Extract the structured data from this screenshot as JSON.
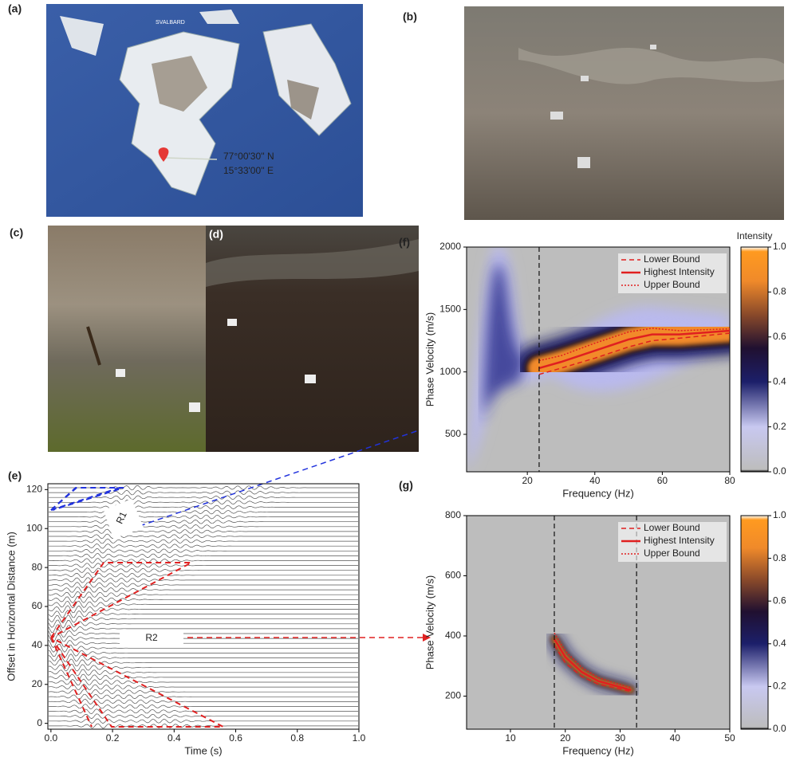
{
  "panel_labels": [
    "(a)",
    "(b)",
    "(c)",
    "(d)",
    "(e)",
    "(f)",
    "(g)"
  ],
  "map": {
    "region": "SVALBARD",
    "latitude": "77°00'30'' N",
    "longitude": "15°33'00'' E"
  },
  "seismogram": {
    "xlabel": "Time (s)",
    "ylabel": "Offset in Horizontal Distance (m)",
    "xlim": [
      -0.01,
      1.0
    ],
    "xticks": [
      {
        "value": 0,
        "label": "0.0"
      },
      {
        "value": 0.2,
        "label": "0.2"
      },
      {
        "value": 0.4,
        "label": "0.4"
      },
      {
        "value": 0.6,
        "label": "0.6"
      },
      {
        "value": 0.8,
        "label": "0.8"
      },
      {
        "value": 1.0,
        "label": "1.0"
      }
    ],
    "ylim": [
      -3,
      123
    ],
    "yticks": [
      0,
      20,
      40,
      60,
      80,
      100,
      120
    ],
    "annotations": [
      "R1",
      "R2"
    ]
  },
  "dispersion_f": {
    "xlabel": "Frequency (Hz)",
    "ylabel": "Phase Velocity (m/s)",
    "xlim": [
      2,
      80
    ],
    "xticks": [
      20,
      40,
      60,
      80
    ],
    "ylim": [
      200,
      2000
    ],
    "yticks": [
      500,
      1000,
      1500,
      2000
    ],
    "cutoffs": [
      23.5
    ],
    "legend": [
      "Lower Bound",
      "Highest Intensity",
      "Upper Bound"
    ],
    "curves": {
      "x": [
        23.5,
        30,
        40,
        50,
        57,
        65,
        80
      ],
      "lower": [
        980,
        1030,
        1110,
        1200,
        1250,
        1270,
        1310
      ],
      "highest": [
        1030,
        1080,
        1170,
        1260,
        1300,
        1300,
        1330
      ],
      "upper": [
        1090,
        1130,
        1230,
        1320,
        1350,
        1330,
        1345
      ]
    },
    "colorbar": {
      "title": "Intensity",
      "ticks": [
        {
          "value": 0,
          "label": "0.0"
        },
        {
          "value": 0.2,
          "label": "0.2"
        },
        {
          "value": 0.4,
          "label": "0.4"
        },
        {
          "value": 0.6,
          "label": "0.6"
        },
        {
          "value": 0.8,
          "label": "0.8"
        },
        {
          "value": 1.0,
          "label": "1.0"
        }
      ]
    }
  },
  "dispersion_g": {
    "xlabel": "Frequency (Hz)",
    "ylabel": "Phase Velocity (m/s)",
    "xlim": [
      2,
      50
    ],
    "xticks": [
      10,
      20,
      30,
      40,
      50
    ],
    "ylim": [
      90,
      800
    ],
    "yticks": [
      200,
      400,
      600,
      800
    ],
    "cutoffs": [
      18,
      33
    ],
    "legend": [
      "Lower Bound",
      "Highest Intensity",
      "Upper Bound"
    ],
    "curves": {
      "x": [
        18,
        20,
        23,
        26,
        29,
        32
      ],
      "lower": [
        370,
        310,
        265,
        240,
        228,
        215
      ],
      "highest": [
        390,
        330,
        280,
        250,
        235,
        220
      ],
      "upper": [
        410,
        350,
        295,
        262,
        243,
        228
      ]
    },
    "colorbar": {
      "ticks": [
        {
          "value": 0,
          "label": "0.0"
        },
        {
          "value": 0.2,
          "label": "0.2"
        },
        {
          "value": 0.4,
          "label": "0.4"
        },
        {
          "value": 0.6,
          "label": "0.6"
        },
        {
          "value": 0.8,
          "label": "0.8"
        },
        {
          "value": 1.0,
          "label": "1.0"
        }
      ]
    }
  }
}
